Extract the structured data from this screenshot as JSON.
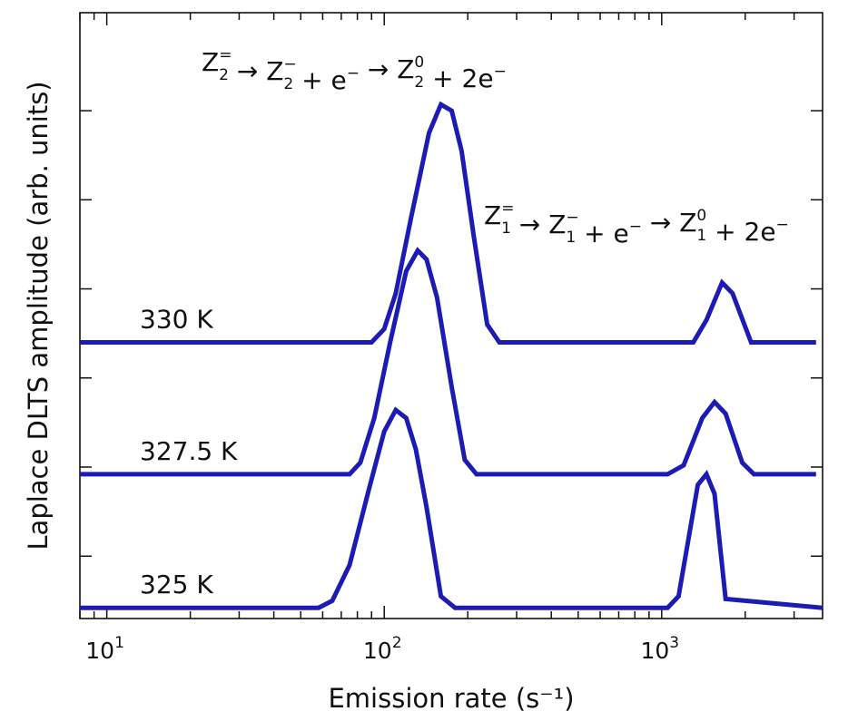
{
  "chart_data": {
    "type": "line",
    "xscale": "log",
    "xlim": [
      8,
      3800
    ],
    "xlabel": "Emission rate (s⁻¹)",
    "ylabel": "Laplace DLTS amplitude (arb. units)",
    "y_ticklabels_shown": false,
    "grid": false,
    "x_ticks": [
      {
        "value": 10,
        "label_base": "10",
        "label_exp": "1"
      },
      {
        "value": 100,
        "label_base": "10",
        "label_exp": "2"
      },
      {
        "value": 1000,
        "label_base": "10",
        "label_exp": "3"
      }
    ],
    "ylim": [
      -0.7,
      6.1
    ],
    "y_ticks": [
      0,
      1,
      2,
      3,
      4,
      5
    ],
    "line_color": "#1c1cb4",
    "series": [
      {
        "name": "330 K",
        "offset": 2.4,
        "x": [
          8,
          90,
          100,
          110,
          125,
          145,
          160,
          175,
          190,
          210,
          235,
          260,
          1300,
          1450,
          1650,
          1800,
          2100,
          3600
        ],
        "y": [
          2.4,
          2.4,
          2.55,
          2.95,
          3.8,
          4.75,
          5.07,
          5.0,
          4.55,
          3.6,
          2.6,
          2.4,
          2.4,
          2.65,
          3.07,
          2.95,
          2.4,
          2.4
        ]
      },
      {
        "name": "327.5 K",
        "offset": 0.92,
        "x": [
          8,
          75,
          82,
          92,
          105,
          120,
          132,
          142,
          155,
          175,
          195,
          215,
          1050,
          1200,
          1400,
          1550,
          1700,
          1950,
          2150,
          3600
        ],
        "y": [
          0.92,
          0.92,
          1.05,
          1.55,
          2.4,
          3.2,
          3.43,
          3.33,
          2.9,
          1.9,
          1.08,
          0.92,
          0.92,
          1.02,
          1.55,
          1.73,
          1.6,
          1.05,
          0.92,
          0.92
        ]
      },
      {
        "name": "325 K",
        "offset": -0.58,
        "x": [
          8,
          58,
          65,
          75,
          88,
          100,
          110,
          120,
          130,
          142,
          160,
          180,
          1050,
          1150,
          1350,
          1450,
          1550,
          1700,
          3800
        ],
        "y": [
          -0.58,
          -0.58,
          -0.5,
          -0.1,
          0.75,
          1.4,
          1.64,
          1.55,
          1.2,
          0.55,
          -0.45,
          -0.58,
          -0.58,
          -0.45,
          0.8,
          0.92,
          0.7,
          -0.48,
          -0.58
        ]
      }
    ],
    "annotations": [
      {
        "id": "z2",
        "parts": [
          {
            "t": "Z"
          },
          {
            "sup": "=",
            "sub": "2"
          },
          {
            "t": " → Z"
          },
          {
            "sup": "−",
            "sub": "2"
          },
          {
            "t": " + e"
          },
          {
            "sup": "−"
          },
          {
            "t": " → Z"
          },
          {
            "sup": "0",
            "sub": "2"
          },
          {
            "t": " + 2e"
          },
          {
            "sup": "−"
          }
        ]
      },
      {
        "id": "z1",
        "parts": [
          {
            "t": "Z"
          },
          {
            "sup": "=",
            "sub": "1"
          },
          {
            "t": " → Z"
          },
          {
            "sup": "−",
            "sub": "1"
          },
          {
            "t": " + e"
          },
          {
            "sup": "−"
          },
          {
            "t": " → Z"
          },
          {
            "sup": "0",
            "sub": "1"
          },
          {
            "t": " + 2e"
          },
          {
            "sup": "−"
          }
        ]
      }
    ]
  }
}
